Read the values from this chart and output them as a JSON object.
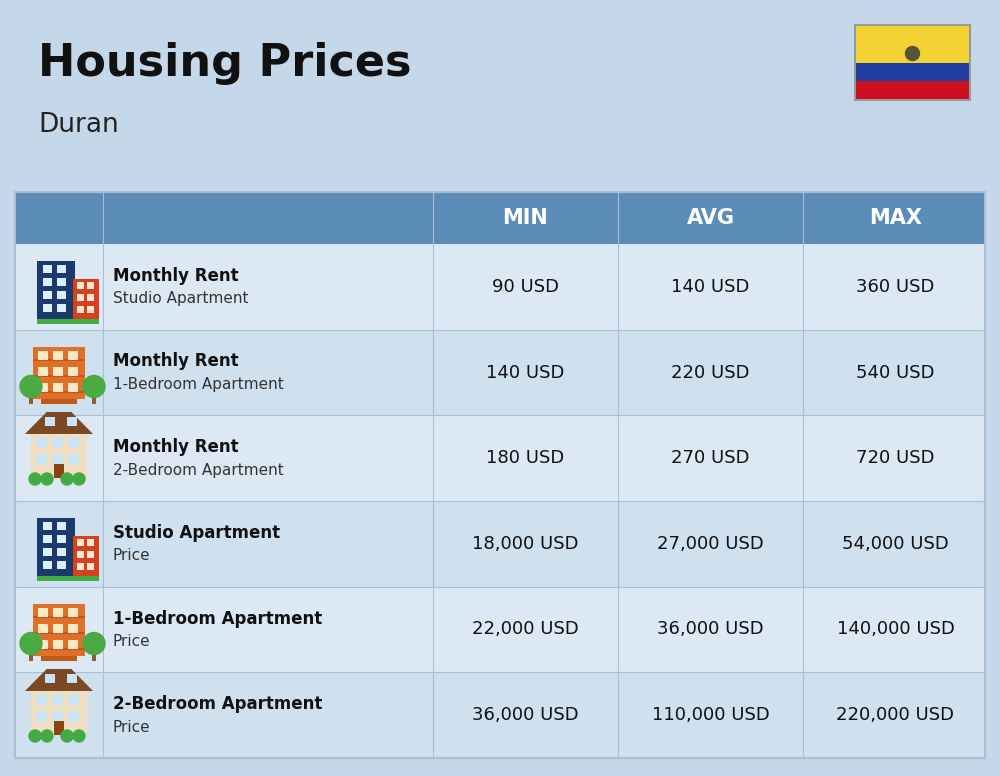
{
  "title": "Housing Prices",
  "subtitle": "Duran",
  "background_color": "#c5d8ea",
  "header_color": "#5b8db8",
  "header_text_color": "#ffffff",
  "row_colors": [
    "#dce9f5",
    "#cfe0ef"
  ],
  "divider_color": "#aabfd4",
  "title_fontsize": 32,
  "subtitle_fontsize": 19,
  "header_labels": [
    "MIN",
    "AVG",
    "MAX"
  ],
  "rows": [
    {
      "icon": "blue_red",
      "label_bold": "Monthly Rent",
      "label_sub": "Studio Apartment",
      "min": "90 USD",
      "avg": "140 USD",
      "max": "360 USD"
    },
    {
      "icon": "orange",
      "label_bold": "Monthly Rent",
      "label_sub": "1-Bedroom Apartment",
      "min": "140 USD",
      "avg": "220 USD",
      "max": "540 USD"
    },
    {
      "icon": "beige",
      "label_bold": "Monthly Rent",
      "label_sub": "2-Bedroom Apartment",
      "min": "180 USD",
      "avg": "270 USD",
      "max": "720 USD"
    },
    {
      "icon": "blue_red",
      "label_bold": "Studio Apartment",
      "label_sub": "Price",
      "min": "18,000 USD",
      "avg": "27,000 USD",
      "max": "54,000 USD"
    },
    {
      "icon": "orange",
      "label_bold": "1-Bedroom Apartment",
      "label_sub": "Price",
      "min": "22,000 USD",
      "avg": "36,000 USD",
      "max": "140,000 USD"
    },
    {
      "icon": "beige",
      "label_bold": "2-Bedroom Apartment",
      "label_sub": "Price",
      "min": "36,000 USD",
      "avg": "110,000 USD",
      "max": "220,000 USD"
    }
  ]
}
